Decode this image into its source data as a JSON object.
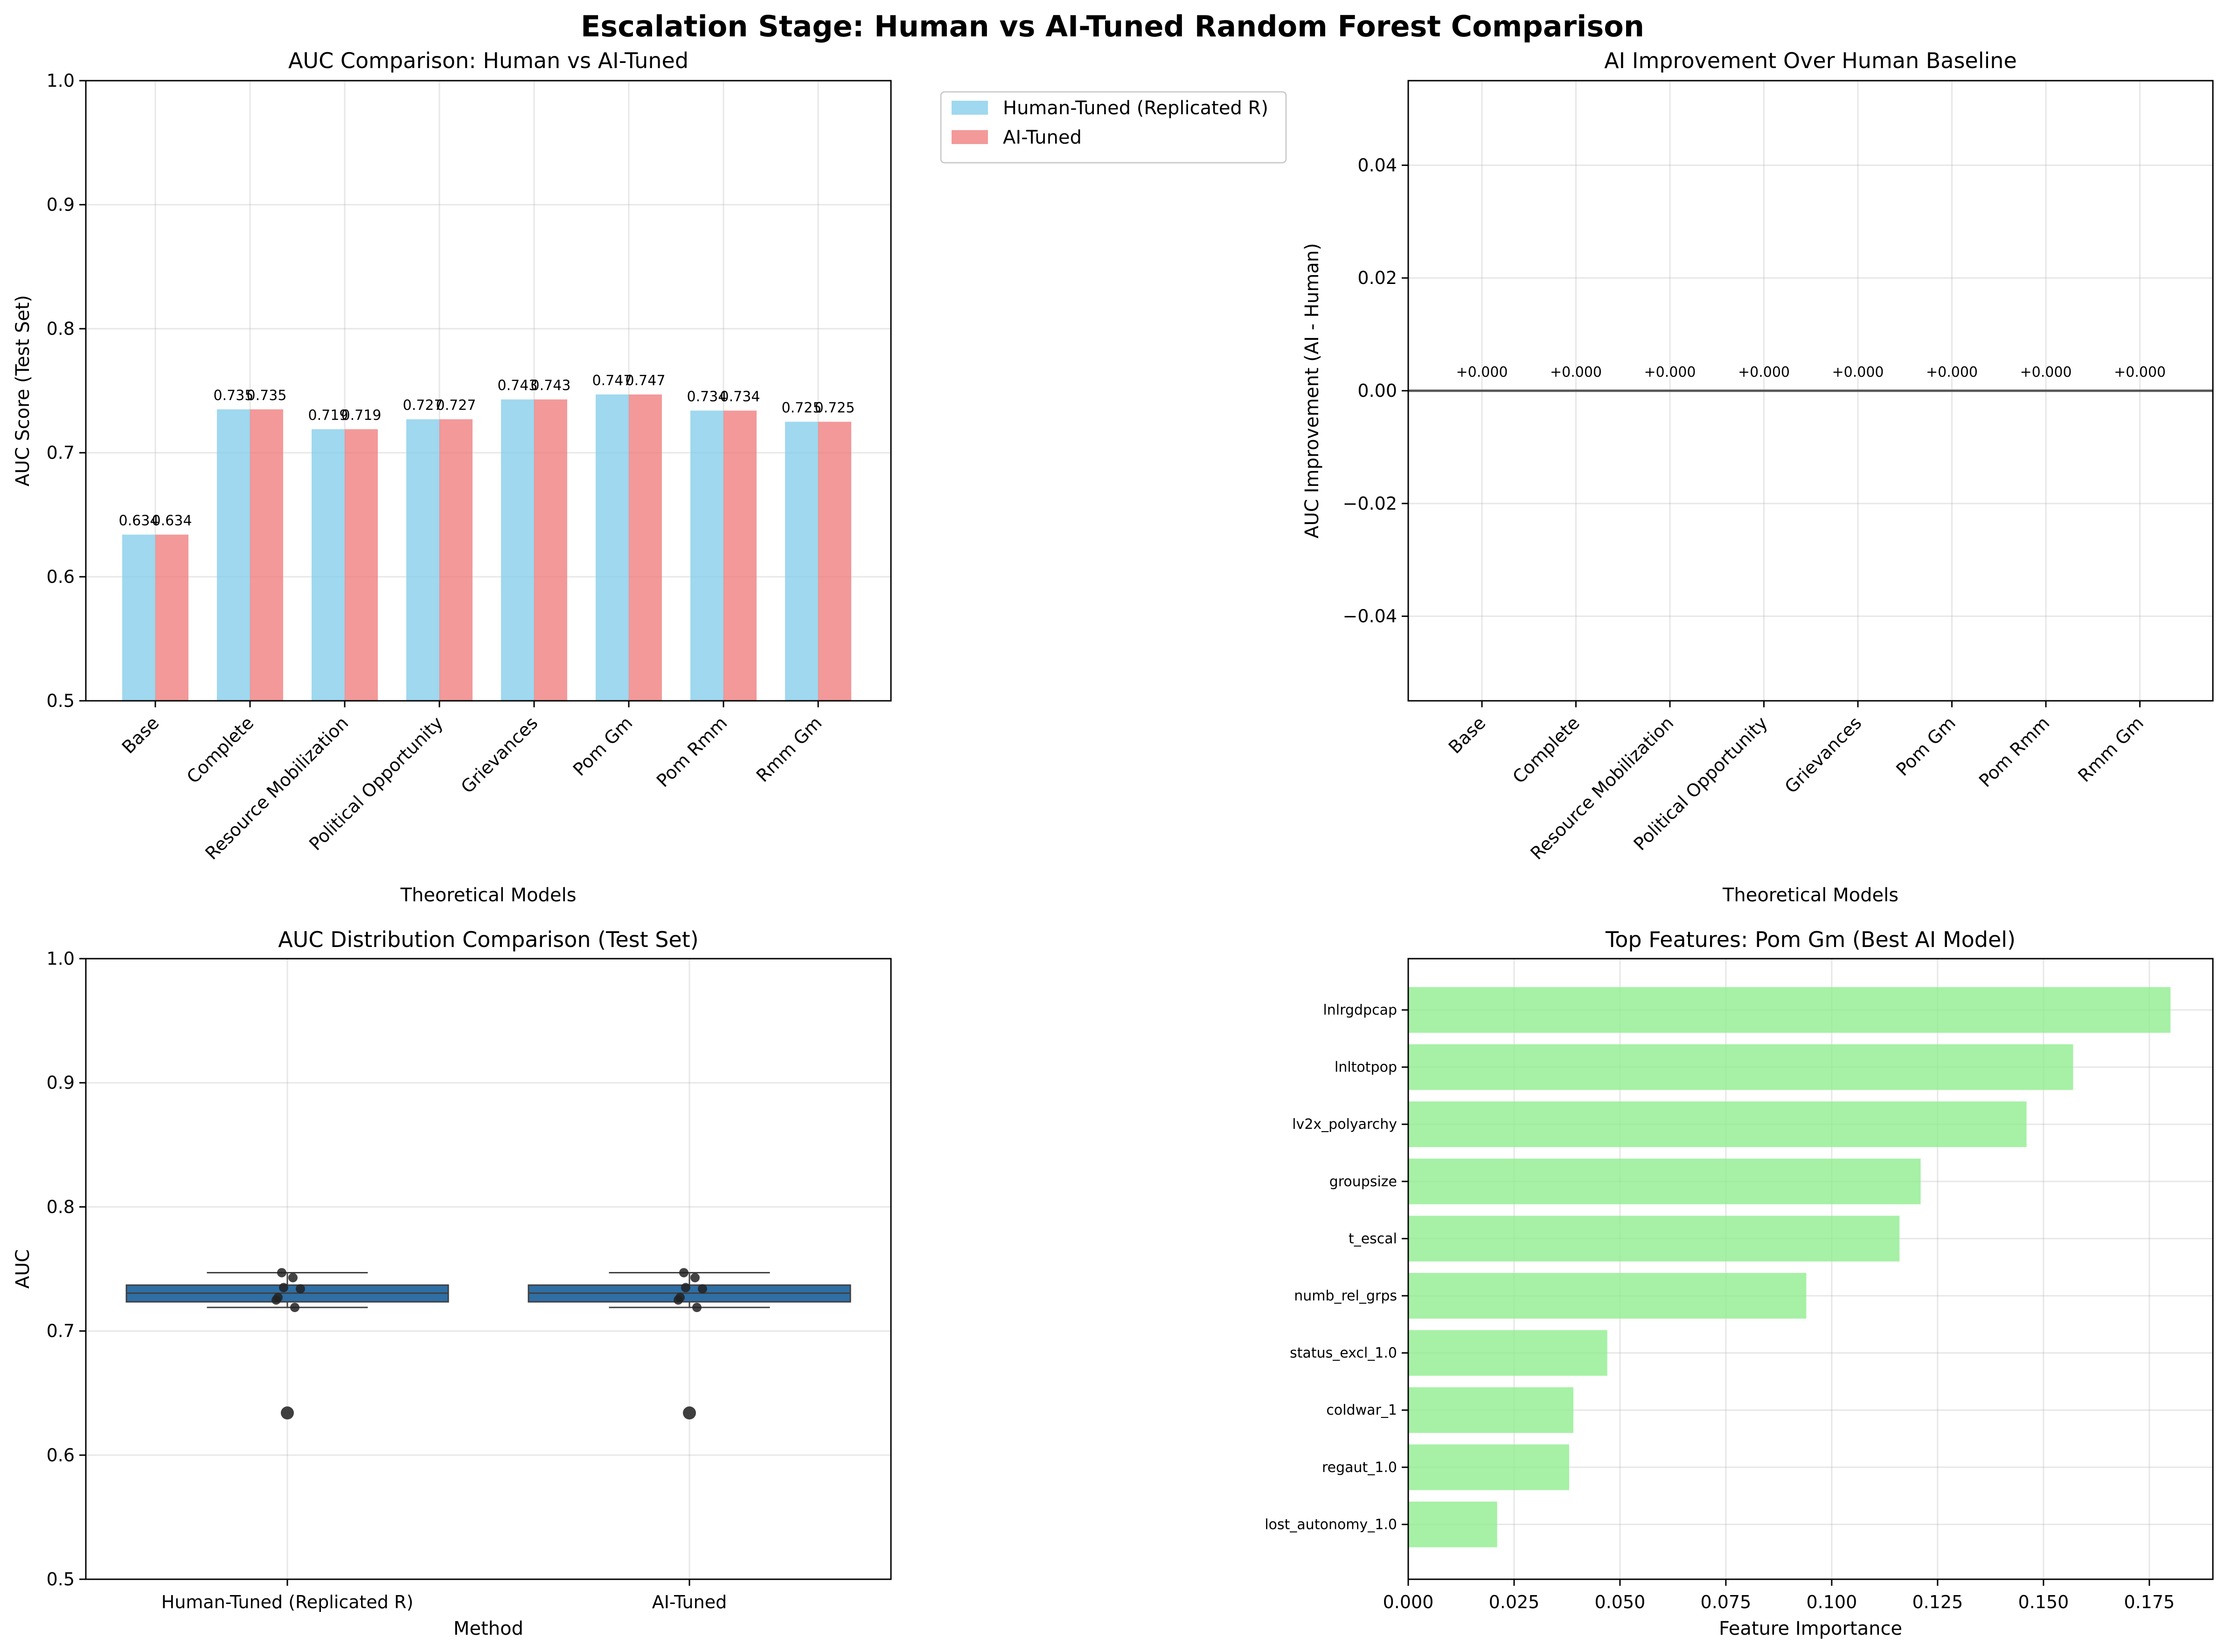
{
  "suptitle": "Escalation Stage: Human vs AI-Tuned Random Forest Comparison",
  "colors": {
    "human": "#87ceeb",
    "ai": "#f08080",
    "feature": "#90ee90",
    "box": "#2f6fa5",
    "zero_line": "#555555"
  },
  "chart_data": [
    {
      "type": "bar",
      "title": "AUC Comparison: Human vs AI-Tuned",
      "xlabel": "Theoretical Models",
      "ylabel": "AUC Score (Test Set)",
      "ylim": [
        0.5,
        1.0
      ],
      "yticks": [
        0.5,
        0.6,
        0.7,
        0.8,
        0.9,
        1.0
      ],
      "ytick_labels": [
        "0.5",
        "0.6",
        "0.7",
        "0.8",
        "0.9",
        "1.0"
      ],
      "categories": [
        "Base",
        "Complete",
        "Resource Mobilization",
        "Political Opportunity",
        "Grievances",
        "Pom Gm",
        "Pom Rmm",
        "Rmm Gm"
      ],
      "series": [
        {
          "name": "Human-Tuned (Replicated R)",
          "values": [
            0.634,
            0.735,
            0.719,
            0.727,
            0.743,
            0.747,
            0.734,
            0.725
          ],
          "labels": [
            "0.634",
            "0.735",
            "0.719",
            "0.727",
            "0.743",
            "0.747",
            "0.734",
            "0.725"
          ]
        },
        {
          "name": "AI-Tuned",
          "values": [
            0.634,
            0.735,
            0.719,
            0.727,
            0.743,
            0.747,
            0.734,
            0.725
          ],
          "labels": [
            "0.634",
            "0.735",
            "0.719",
            "0.727",
            "0.743",
            "0.747",
            "0.734",
            "0.725"
          ]
        }
      ],
      "legend": "outside upper-right",
      "grid": true
    },
    {
      "type": "bar",
      "title": "AI Improvement Over Human Baseline",
      "xlabel": "Theoretical Models",
      "ylabel": "AUC Improvement (AI - Human)",
      "ylim": [
        -0.055,
        0.055
      ],
      "yticks": [
        -0.04,
        -0.02,
        0.0,
        0.02,
        0.04
      ],
      "ytick_labels": [
        "−0.04",
        "−0.02",
        "0.00",
        "0.02",
        "0.04"
      ],
      "categories": [
        "Base",
        "Complete",
        "Resource Mobilization",
        "Political Opportunity",
        "Grievances",
        "Pom Gm",
        "Pom Rmm",
        "Rmm Gm"
      ],
      "values": [
        0.0,
        0.0,
        0.0,
        0.0,
        0.0,
        0.0,
        0.0,
        0.0
      ],
      "labels": [
        "+0.000",
        "+0.000",
        "+0.000",
        "+0.000",
        "+0.000",
        "+0.000",
        "+0.000",
        "+0.000"
      ],
      "grid": true
    },
    {
      "type": "box",
      "title": "AUC Distribution Comparison (Test Set)",
      "xlabel": "Method",
      "ylabel": "AUC",
      "ylim": [
        0.5,
        1.0
      ],
      "yticks": [
        0.5,
        0.6,
        0.7,
        0.8,
        0.9,
        1.0
      ],
      "ytick_labels": [
        "0.5",
        "0.6",
        "0.7",
        "0.8",
        "0.9",
        "1.0"
      ],
      "categories": [
        "Human-Tuned (Replicated R)",
        "AI-Tuned"
      ],
      "series": [
        {
          "values": [
            0.634,
            0.735,
            0.719,
            0.727,
            0.743,
            0.747,
            0.734,
            0.725
          ],
          "q1": 0.7235,
          "median": 0.7305,
          "q3": 0.737,
          "whisker_low": 0.719,
          "whisker_high": 0.747,
          "outliers": [
            0.634
          ]
        },
        {
          "values": [
            0.634,
            0.735,
            0.719,
            0.727,
            0.743,
            0.747,
            0.734,
            0.725
          ],
          "q1": 0.7235,
          "median": 0.7305,
          "q3": 0.737,
          "whisker_low": 0.719,
          "whisker_high": 0.747,
          "outliers": [
            0.634
          ]
        }
      ],
      "grid": true
    },
    {
      "type": "bar",
      "orientation": "horizontal",
      "title": "Top Features: Pom Gm (Best AI Model)",
      "xlabel": "Feature Importance",
      "ylabel": "",
      "xlim": [
        0.0,
        0.19
      ],
      "xticks": [
        0.0,
        0.025,
        0.05,
        0.075,
        0.1,
        0.125,
        0.15,
        0.175
      ],
      "xtick_labels": [
        "0.000",
        "0.025",
        "0.050",
        "0.075",
        "0.100",
        "0.125",
        "0.150",
        "0.175"
      ],
      "categories": [
        "lnlrgdpcap",
        "lnltotpop",
        "lv2x_polyarchy",
        "groupsize",
        "t_escal",
        "numb_rel_grps",
        "status_excl_1.0",
        "coldwar_1",
        "regaut_1.0",
        "lost_autonomy_1.0"
      ],
      "values": [
        0.18,
        0.157,
        0.146,
        0.121,
        0.116,
        0.094,
        0.047,
        0.039,
        0.038,
        0.021
      ],
      "grid": true
    }
  ]
}
